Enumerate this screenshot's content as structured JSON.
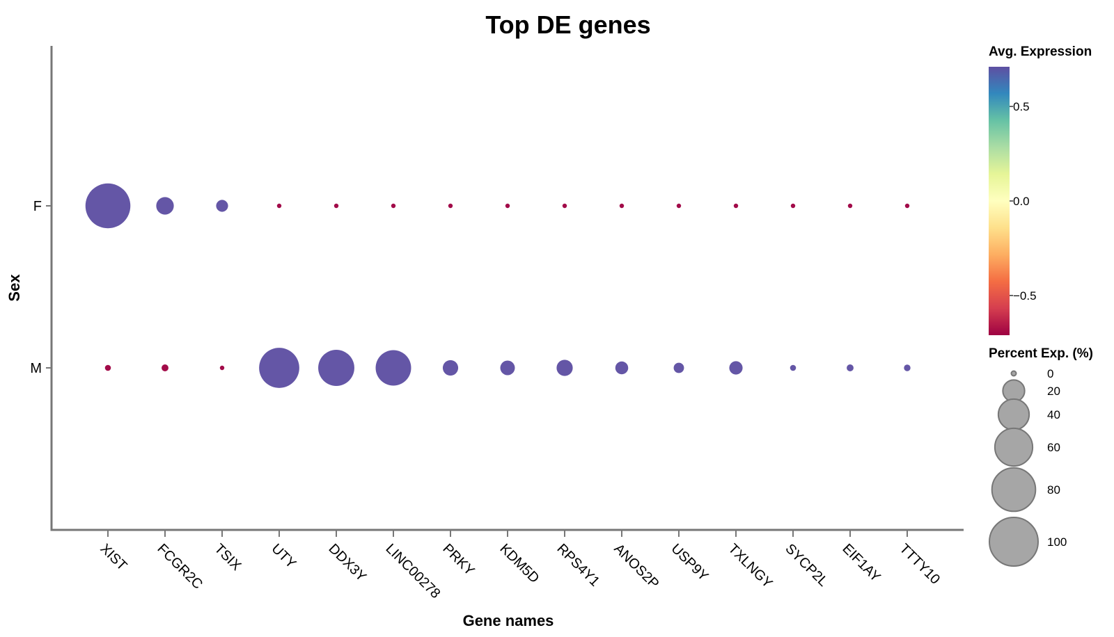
{
  "chart_data": {
    "type": "scatter",
    "title": "Top DE genes",
    "xlabel": "Gene names",
    "ylabel": "Sex",
    "categories": [
      "XIST",
      "FCGR2C",
      "TSIX",
      "UTY",
      "DDX3Y",
      "LINC00278",
      "PRKY",
      "KDM5D",
      "RPS4Y1",
      "ANOS2P",
      "USP9Y",
      "TXLNGY",
      "SYCP2L",
      "EIF1AY",
      "TTTY10"
    ],
    "groups": [
      "F",
      "M"
    ],
    "series": [
      {
        "name": "F",
        "avg_expression": [
          0.71,
          0.71,
          0.71,
          -0.71,
          -0.71,
          -0.71,
          -0.71,
          -0.71,
          -0.71,
          -0.71,
          -0.71,
          -0.71,
          -0.71,
          -0.71,
          -0.71
        ],
        "percent_exp": [
          85,
          13,
          6,
          0.5,
          0.5,
          0.5,
          0.5,
          0.5,
          0.5,
          0.5,
          0.5,
          0.5,
          0.5,
          0.5,
          0.5
        ]
      },
      {
        "name": "M",
        "avg_expression": [
          -0.71,
          -0.71,
          -0.71,
          0.71,
          0.71,
          0.71,
          0.71,
          0.71,
          0.71,
          0.71,
          0.71,
          0.71,
          0.71,
          0.71,
          0.71
        ],
        "percent_exp": [
          1.5,
          2,
          0.8,
          68,
          55,
          53,
          10,
          9,
          11,
          7,
          4.5,
          7.5,
          1.5,
          2,
          1.8
        ]
      }
    ],
    "color_legend": {
      "title": "Avg. Expression",
      "range": [
        -0.71,
        0.71
      ],
      "ticks": [
        0.5,
        0.0,
        -0.5
      ],
      "tick_labels": [
        "0.5",
        "0.0",
        "−0.5"
      ],
      "colormap": [
        "#9e0142",
        "#d53e4f",
        "#f46d43",
        "#fdae61",
        "#fee08b",
        "#ffffbf",
        "#e6f598",
        "#abdda4",
        "#66c2a5",
        "#3288bd",
        "#5e4fa2"
      ]
    },
    "size_legend": {
      "title": "Percent Exp. (%)",
      "values": [
        0,
        20,
        40,
        60,
        80,
        100
      ],
      "labels": [
        "0",
        "20",
        "40",
        "60",
        "80",
        "100"
      ]
    },
    "grid": false,
    "legend_position": "right"
  }
}
